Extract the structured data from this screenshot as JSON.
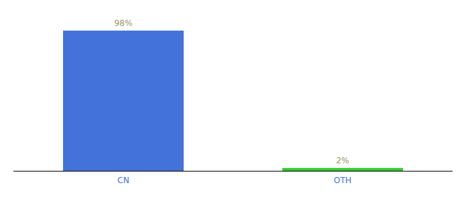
{
  "chart_data": {
    "type": "bar",
    "categories": [
      "CN",
      "OTH"
    ],
    "values": [
      98,
      2
    ],
    "value_labels": [
      "98%",
      "2%"
    ],
    "colors": [
      "#4472db",
      "#33cc33"
    ],
    "ylim": [
      0,
      105
    ],
    "data_labels": true,
    "tick_labels": "x",
    "grid": false
  }
}
